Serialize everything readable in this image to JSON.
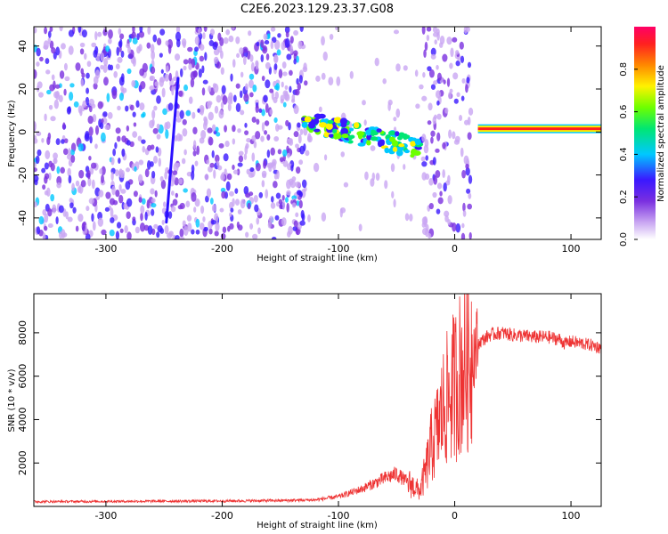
{
  "title": "C2E6.2023.129.23.37.G08",
  "chart_data": [
    {
      "type": "heatmap",
      "xlabel": "Height of straight line (km)",
      "ylabel": "Frequency (Hz)",
      "xlim": [
        -362,
        126
      ],
      "ylim": [
        -50,
        49
      ],
      "xticks": [
        -300,
        -200,
        -100,
        0,
        100
      ],
      "yticks": [
        -40,
        -20,
        0,
        20,
        40
      ],
      "colorbar": {
        "label": "Normalized spectral amplitude",
        "range": [
          0,
          1
        ],
        "ticks": [
          0.0,
          0.2,
          0.4,
          0.6,
          0.8
        ],
        "colors": [
          "#ffffff",
          "#c9a6f2",
          "#7a2fe0",
          "#3a18ff",
          "#00c8ff",
          "#00e673",
          "#6dff00",
          "#fff200",
          "#ff8800",
          "#ff2020",
          "#ff0066"
        ]
      },
      "features": [
        {
          "name": "noise-region",
          "x_range": [
            -362,
            -128
          ],
          "freq_range": [
            -50,
            49
          ],
          "amplitude": 0.15
        },
        {
          "name": "tilted-streak",
          "x_from": -248,
          "x_to": -238,
          "freq_from": -42,
          "freq_to": 25,
          "amplitude": 0.3
        },
        {
          "name": "gap-region",
          "x_range": [
            -128,
            -27
          ],
          "freq_range": [
            -50,
            49
          ],
          "amplitude": 0.02
        },
        {
          "name": "signal-cluster",
          "x_range": [
            -130,
            -28
          ],
          "freq_start": 5,
          "freq_end": -8,
          "amplitude": 0.45
        },
        {
          "name": "noise-band",
          "x_range": [
            -27,
            14
          ],
          "freq_range": [
            -50,
            49
          ],
          "amplitude": 0.12
        },
        {
          "name": "carrier-line",
          "x_range": [
            20,
            126
          ],
          "freq": 1.5,
          "amplitude": 0.95
        }
      ]
    },
    {
      "type": "line",
      "xlabel": "Height of straight line (km)",
      "ylabel": "SNR (10 * v/v)",
      "xlim": [
        -362,
        126
      ],
      "ylim": [
        0,
        9800
      ],
      "xticks": [
        -300,
        -200,
        -100,
        0,
        100
      ],
      "yticks": [
        2000,
        4000,
        6000,
        8000
      ],
      "color": "#ee3333",
      "series": [
        {
          "x": [
            -362,
            -300,
            -250,
            -200,
            -150,
            -120,
            -100,
            -80,
            -60,
            -50,
            -40,
            -30,
            -25,
            -20,
            -15,
            -10,
            -5,
            0,
            5,
            10,
            20,
            30,
            40,
            50,
            60,
            70,
            80,
            90,
            95,
            100,
            110,
            120,
            126
          ],
          "values": [
            220,
            230,
            240,
            250,
            270,
            300,
            450,
            800,
            1300,
            1500,
            1100,
            700,
            1600,
            2800,
            3500,
            4500,
            5100,
            5600,
            6200,
            6700,
            7500,
            7900,
            8000,
            7900,
            7850,
            7800,
            7800,
            7700,
            7500,
            7600,
            7500,
            7400,
            7300
          ]
        }
      ]
    }
  ]
}
